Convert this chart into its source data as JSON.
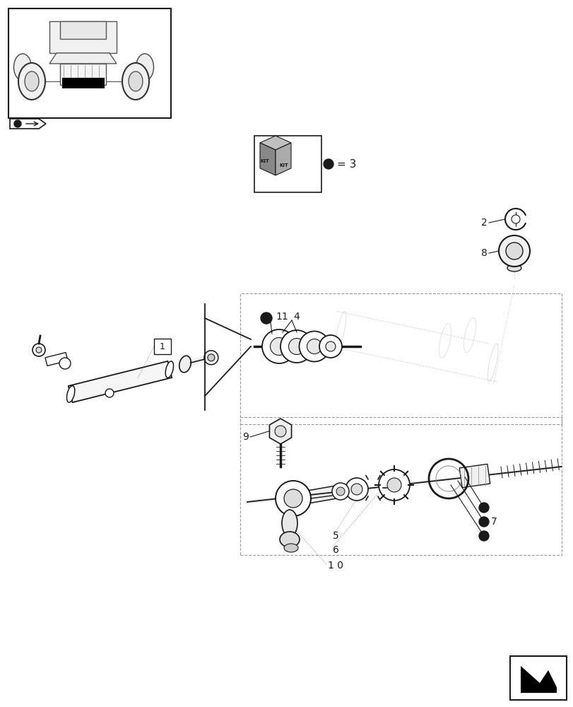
{
  "bg_color": "#ffffff",
  "fig_width": 8.12,
  "fig_height": 10.0,
  "dpi": 100,
  "dark": "#1a1a1a",
  "gray": "#aaaaaa",
  "lightgray": "#dddddd",
  "dotted_color": "#bbbbbb"
}
